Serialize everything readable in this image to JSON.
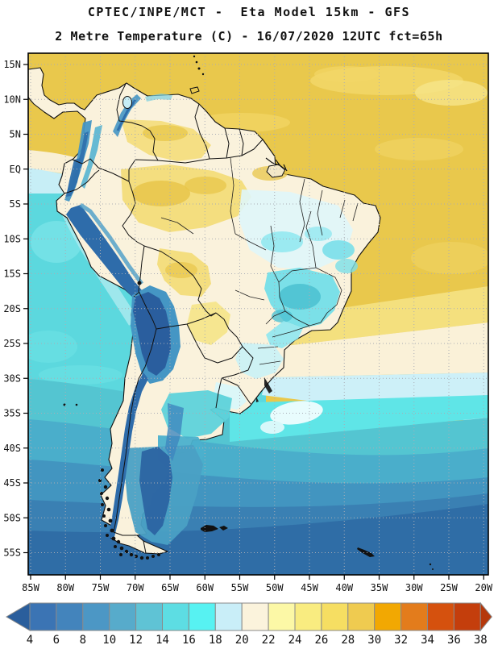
{
  "header": {
    "line1": "CPTEC/INPE/MCT -  Eta Model 15km - GFS",
    "line2": "2 Metre Temperature (C) - 16/07/2020 12UTC fct=65h"
  },
  "map": {
    "lat_labels": [
      "15N",
      "10N",
      "5N",
      "EQ",
      "5S",
      "10S",
      "15S",
      "20S",
      "25S",
      "30S",
      "35S",
      "40S",
      "45S",
      "50S",
      "55S"
    ],
    "lon_labels": [
      "85W",
      "80W",
      "75W",
      "70W",
      "65W",
      "60W",
      "55W",
      "50W",
      "45W",
      "40W",
      "35W",
      "30W",
      "25W",
      "20W"
    ]
  },
  "colorbar": {
    "tick_labels": [
      "4",
      "6",
      "8",
      "10",
      "12",
      "14",
      "16",
      "18",
      "20",
      "22",
      "24",
      "26",
      "28",
      "30",
      "32",
      "34",
      "36",
      "38"
    ],
    "segment_colors": [
      "#3B74B4",
      "#4384BC",
      "#4C97C5",
      "#57ABCB",
      "#5FC3D5",
      "#5DDDE3",
      "#57F2F2",
      "#C9EEF8",
      "#FBF3DC",
      "#FCF8A6",
      "#F9EC80",
      "#F6DE62",
      "#EFCB50",
      "#F2A802",
      "#E37C1C",
      "#D5510E",
      "#C43E0C"
    ],
    "left_arrow_color": "#2A5E9C",
    "right_arrow_color": "#B5380B",
    "units": "C"
  },
  "colors": {
    "ocean_tropical": "#E9C84C",
    "land_base": "#FAF2DC",
    "andes_cold": "#2A5E9E",
    "grid": "#A9ADB5"
  }
}
